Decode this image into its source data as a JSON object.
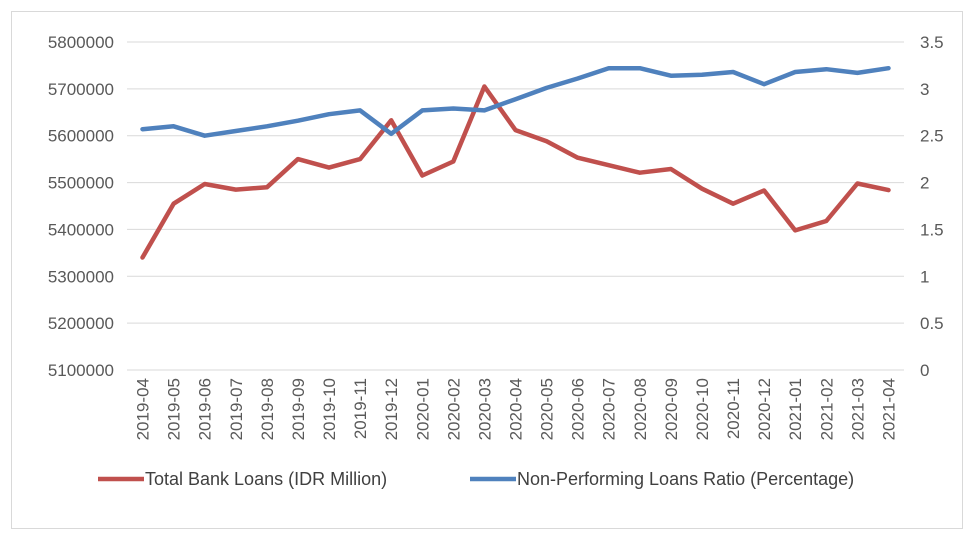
{
  "chart_data": {
    "type": "line",
    "categories": [
      "2019-04",
      "2019-05",
      "2019-06",
      "2019-07",
      "2019-08",
      "2019-09",
      "2019-10",
      "2019-11",
      "2019-12",
      "2020-01",
      "2020-02",
      "2020-03",
      "2020-04",
      "2020-05",
      "2020-06",
      "2020-07",
      "2020-08",
      "2020-09",
      "2020-10",
      "2020-11",
      "2020-12",
      "2021-01",
      "2021-02",
      "2021-03",
      "2021-04"
    ],
    "left_axis": {
      "min": 5100000,
      "max": 5800000,
      "ticks": [
        "5100000",
        "5200000",
        "5300000",
        "5400000",
        "5500000",
        "5600000",
        "5700000",
        "5800000"
      ]
    },
    "right_axis": {
      "min": 0,
      "max": 3.5,
      "ticks": [
        "0",
        "0.5",
        "1",
        "1.5",
        "2",
        "2.5",
        "3",
        "3.5"
      ]
    },
    "grid": "horizontal",
    "legend_position": "bottom",
    "series": [
      {
        "name": "Total Bank Loans (IDR Million)",
        "axis": "left",
        "color": "#c0504d",
        "values": [
          5340000,
          5455000,
          5497000,
          5485000,
          5490000,
          5550000,
          5532000,
          5550000,
          5633000,
          5515000,
          5545000,
          5705000,
          5612000,
          5588000,
          5553000,
          5537000,
          5521000,
          5529000,
          5487000,
          5455000,
          5483000,
          5398000,
          5418000,
          5498000,
          5484000
        ]
      },
      {
        "name": "Non-Performing Loans Ratio (Percentage)",
        "axis": "right",
        "color": "#4f81bd",
        "values": [
          2.57,
          2.6,
          2.5,
          2.55,
          2.6,
          2.66,
          2.73,
          2.77,
          2.52,
          2.77,
          2.79,
          2.77,
          2.89,
          3.01,
          3.11,
          3.22,
          3.22,
          3.14,
          3.15,
          3.18,
          3.05,
          3.18,
          3.21,
          3.17,
          3.22
        ]
      }
    ]
  }
}
